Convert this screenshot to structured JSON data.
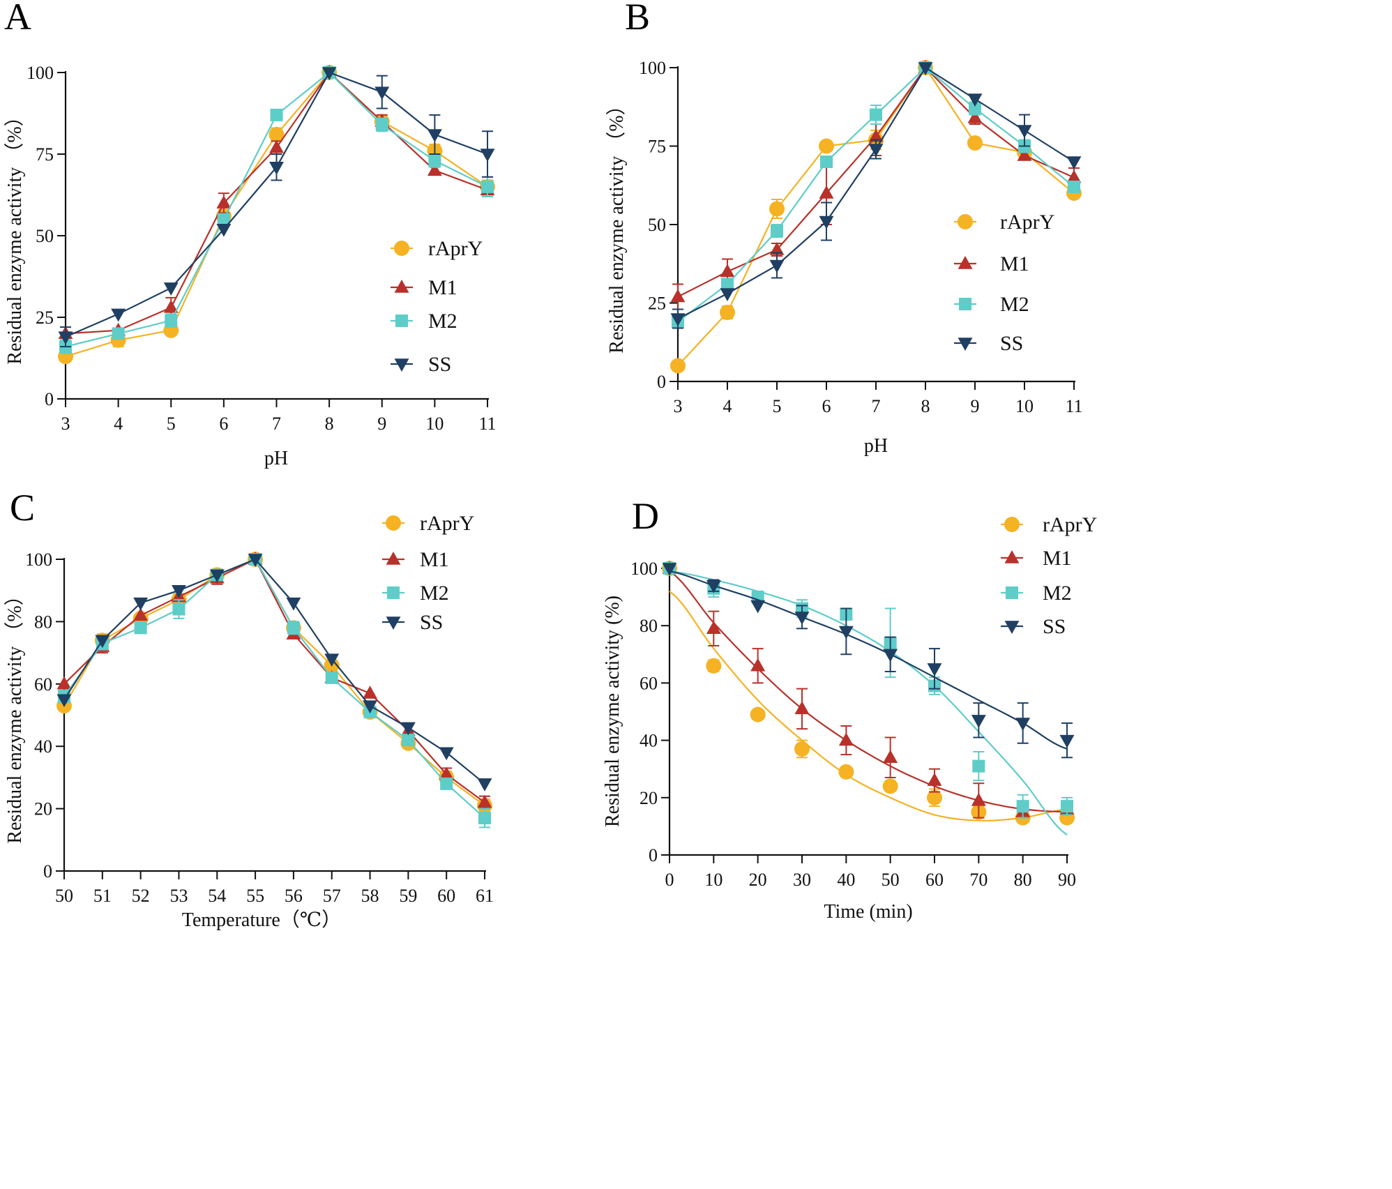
{
  "colors": {
    "rAprY": "#f5b223",
    "M1": "#b8312a",
    "M2": "#5ecdc8",
    "SS": "#1f3f63"
  },
  "chart_data": [
    {
      "panel": "A",
      "type": "line",
      "xlabel": "pH",
      "ylabel": "Residual enzyme activity （%）",
      "x": [
        3,
        4,
        5,
        6,
        7,
        8,
        9,
        10,
        11
      ],
      "xticks": [
        "3",
        "4",
        "5",
        "6",
        "7",
        "8",
        "9",
        "10",
        "11"
      ],
      "ylim": [
        0,
        100
      ],
      "yticks": [
        "0",
        "25",
        "50",
        "75",
        "100"
      ],
      "legend_position": "right",
      "series": [
        {
          "name": "rAprY",
          "marker": "circle",
          "values": [
            13,
            18,
            21,
            56,
            81,
            100,
            85,
            76,
            65
          ],
          "err": [
            1,
            2,
            1,
            2,
            2,
            1,
            2,
            2,
            2
          ]
        },
        {
          "name": "M1",
          "marker": "triangle-up",
          "values": [
            20,
            21,
            28,
            60,
            77,
            100,
            85,
            70,
            64
          ],
          "err": [
            1,
            1,
            3,
            3,
            2,
            1,
            2,
            1,
            2
          ]
        },
        {
          "name": "M2",
          "marker": "square",
          "values": [
            16,
            20,
            24,
            55,
            87,
            100,
            84,
            73,
            65
          ],
          "err": [
            2,
            1,
            2,
            1,
            1,
            1,
            2,
            2,
            3
          ]
        },
        {
          "name": "SS",
          "marker": "triangle-down",
          "values": [
            19,
            26,
            34,
            52,
            71,
            100,
            94,
            81,
            75
          ],
          "err": [
            3,
            1,
            1,
            1,
            4,
            1,
            5,
            6,
            7
          ]
        }
      ]
    },
    {
      "panel": "B",
      "type": "line",
      "xlabel": "pH",
      "ylabel": "Residual enzyme activity （%）",
      "x": [
        3,
        4,
        5,
        6,
        7,
        8,
        9,
        10,
        11
      ],
      "xticks": [
        "3",
        "4",
        "5",
        "6",
        "7",
        "8",
        "9",
        "10",
        "11"
      ],
      "ylim": [
        0,
        100
      ],
      "yticks": [
        "0",
        "25",
        "50",
        "75",
        "100"
      ],
      "legend_position": "right",
      "series": [
        {
          "name": "rAprY",
          "marker": "circle",
          "values": [
            5,
            22,
            55,
            75,
            77,
            100,
            76,
            73,
            60
          ],
          "err": [
            1,
            2,
            3,
            1,
            3,
            1,
            1,
            2,
            1
          ]
        },
        {
          "name": "M1",
          "marker": "triangle-up",
          "values": [
            27,
            35,
            42,
            60,
            78,
            100,
            84,
            72,
            65
          ],
          "err": [
            4,
            4,
            2,
            10,
            6,
            1,
            2,
            1,
            3
          ]
        },
        {
          "name": "M2",
          "marker": "square",
          "values": [
            19,
            31,
            48,
            70,
            85,
            100,
            87,
            75,
            62
          ],
          "err": [
            2,
            1,
            2,
            1,
            3,
            1,
            2,
            2,
            1
          ]
        },
        {
          "name": "SS",
          "marker": "triangle-down",
          "values": [
            20,
            28,
            37,
            51,
            74,
            100,
            90,
            80,
            70
          ],
          "err": [
            3,
            1,
            4,
            6,
            3,
            1,
            1,
            5,
            1
          ]
        }
      ]
    },
    {
      "panel": "C",
      "type": "line",
      "xlabel": "Temperature（℃）",
      "ylabel": "Residual enzyme activity （%）",
      "x": [
        50,
        51,
        52,
        53,
        54,
        55,
        56,
        57,
        58,
        59,
        60,
        61
      ],
      "xticks": [
        "50",
        "51",
        "52",
        "53",
        "54",
        "55",
        "56",
        "57",
        "58",
        "59",
        "60",
        "61"
      ],
      "ylim": [
        0,
        100
      ],
      "yticks": [
        "0",
        "20",
        "40",
        "60",
        "80",
        "100"
      ],
      "legend_position": "top-right",
      "series": [
        {
          "name": "rAprY",
          "marker": "circle",
          "values": [
            53,
            74,
            81,
            87,
            95,
            100,
            78,
            66,
            51,
            41,
            30,
            21
          ],
          "err": [
            1,
            2,
            1,
            2,
            1,
            1,
            1,
            1,
            1,
            1,
            2,
            2
          ]
        },
        {
          "name": "M1",
          "marker": "triangle-up",
          "values": [
            60,
            72,
            82,
            88,
            94,
            100,
            76,
            62,
            57,
            45,
            31,
            22
          ],
          "err": [
            1,
            2,
            1,
            1,
            2,
            1,
            1,
            1,
            1,
            1,
            2,
            2
          ]
        },
        {
          "name": "M2",
          "marker": "square",
          "values": [
            56,
            73,
            78,
            84,
            95,
            100,
            78,
            62,
            51,
            42,
            28,
            17
          ],
          "err": [
            2,
            2,
            1,
            3,
            1,
            1,
            2,
            1,
            1,
            1,
            1,
            3
          ]
        },
        {
          "name": "SS",
          "marker": "triangle-down",
          "values": [
            55,
            74,
            86,
            90,
            95,
            100,
            86,
            68,
            53,
            46,
            38,
            28
          ],
          "err": [
            1,
            1,
            1,
            1,
            1,
            1,
            1,
            1,
            1,
            1,
            1,
            1
          ]
        }
      ]
    },
    {
      "panel": "D",
      "type": "scatter",
      "xlabel": "Time (min)",
      "ylabel": "Residual enzyme activity (%)",
      "x": [
        0,
        10,
        20,
        30,
        40,
        50,
        60,
        70,
        80,
        90
      ],
      "xticks": [
        "0",
        "10",
        "20",
        "30",
        "40",
        "50",
        "60",
        "70",
        "80",
        "90"
      ],
      "ylim": [
        0,
        100
      ],
      "yticks": [
        "0",
        "20",
        "40",
        "60",
        "80",
        "100"
      ],
      "legend_position": "top-right",
      "fit": "polynomial trend curve",
      "series": [
        {
          "name": "rAprY",
          "marker": "circle",
          "values": [
            100,
            66,
            49,
            37,
            29,
            24,
            20,
            15,
            13,
            13
          ],
          "err": [
            1,
            2,
            1,
            3,
            1,
            1,
            3,
            2,
            1,
            1
          ],
          "fit_values": [
            92,
            72,
            54,
            40,
            28,
            20,
            14,
            12,
            13,
            16
          ]
        },
        {
          "name": "M1",
          "marker": "triangle-up",
          "values": [
            100,
            79,
            66,
            51,
            40,
            34,
            26,
            19,
            15,
            16
          ],
          "err": [
            1,
            6,
            6,
            7,
            5,
            7,
            4,
            6,
            2,
            2
          ],
          "fit_values": [
            99,
            81,
            65,
            51,
            40,
            31,
            24,
            19,
            16,
            15
          ]
        },
        {
          "name": "M2",
          "marker": "square",
          "values": [
            100,
            93,
            90,
            86,
            84,
            74,
            59,
            31,
            17,
            17
          ],
          "err": [
            1,
            3,
            2,
            3,
            2,
            12,
            3,
            5,
            4,
            3
          ],
          "fit_values": [
            99,
            96,
            92,
            87,
            80,
            71,
            59,
            43,
            26,
            7
          ]
        },
        {
          "name": "SS",
          "marker": "triangle-down",
          "values": [
            100,
            94,
            87,
            83,
            78,
            70,
            65,
            47,
            46,
            40
          ],
          "err": [
            1,
            2,
            1,
            4,
            8,
            6,
            7,
            6,
            7,
            6
          ],
          "fit_values": [
            99,
            94,
            89,
            83,
            77,
            70,
            62,
            54,
            46,
            37
          ]
        }
      ]
    }
  ]
}
